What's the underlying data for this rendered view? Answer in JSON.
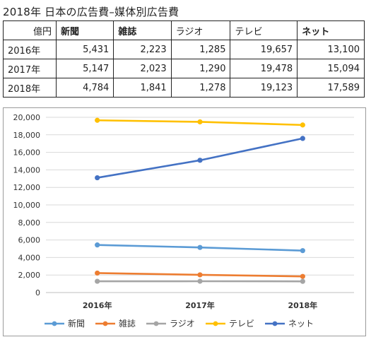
{
  "title": "2018年 日本の広告費–媒体別広告費",
  "table": {
    "corner": "億円",
    "columns": [
      {
        "label": "新聞",
        "bold": true
      },
      {
        "label": "雑誌",
        "bold": true
      },
      {
        "label": "ラジオ",
        "bold": false
      },
      {
        "label": "テレビ",
        "bold": false
      },
      {
        "label": "ネット",
        "bold": true
      }
    ],
    "rows": [
      {
        "label": "2016年",
        "values": [
          "5,431",
          "2,223",
          "1,285",
          "19,657",
          "13,100"
        ]
      },
      {
        "label": "2017年",
        "values": [
          "5,147",
          "2,023",
          "1,290",
          "19,478",
          "15,094"
        ]
      },
      {
        "label": "2018年",
        "values": [
          "4,784",
          "1,841",
          "1,278",
          "19,123",
          "17,589"
        ]
      }
    ]
  },
  "chart_data": {
    "type": "line",
    "categories": [
      "2016年",
      "2017年",
      "2018年"
    ],
    "ylim": [
      0,
      20000
    ],
    "yticks": [
      0,
      2000,
      4000,
      6000,
      8000,
      10000,
      12000,
      14000,
      16000,
      18000,
      20000
    ],
    "ytick_labels": [
      "0",
      "2,000",
      "4,000",
      "6,000",
      "8,000",
      "10,000",
      "12,000",
      "14,000",
      "16,000",
      "18,000",
      "20,000"
    ],
    "grid": true,
    "legend_position": "bottom",
    "series": [
      {
        "name": "新聞",
        "color": "#5b9bd5",
        "values": [
          5431,
          5147,
          4784
        ]
      },
      {
        "name": "雑誌",
        "color": "#ed7d31",
        "values": [
          2223,
          2023,
          1841
        ]
      },
      {
        "name": "ラジオ",
        "color": "#a5a5a5",
        "values": [
          1285,
          1290,
          1278
        ]
      },
      {
        "name": "テレビ",
        "color": "#ffc000",
        "values": [
          19657,
          19478,
          19123
        ]
      },
      {
        "name": "ネット",
        "color": "#4472c4",
        "values": [
          13100,
          15094,
          17589
        ]
      }
    ]
  }
}
